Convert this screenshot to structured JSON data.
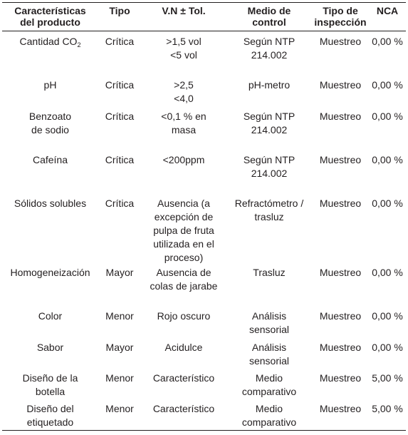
{
  "table": {
    "headers": [
      "Características\ndel producto",
      "Tipo",
      "V.N ± Tol.",
      "Medio de\ncontrol",
      "Tipo de\ninspección",
      "NCA"
    ],
    "rows": [
      {
        "caracteristica_pre": "Cantidad CO",
        "caracteristica_sub": "2",
        "tipo": "Crítica",
        "vn_tol": ">1,5 vol\n<5 vol",
        "medio": "Según NTP\n214.002",
        "inspeccion": "Muestreo",
        "nca": "0,00 %"
      },
      {
        "caracteristica": "pH",
        "tipo": "Crítica",
        "vn_tol": ">2,5\n<4,0",
        "medio": "pH-metro",
        "inspeccion": "Muestreo",
        "nca": "0,00 %"
      },
      {
        "caracteristica": "Benzoato\nde sodio",
        "tipo": "Crítica",
        "vn_tol": "<0,1 % en\nmasa",
        "medio": "Según NTP\n214.002",
        "inspeccion": "Muestreo",
        "nca": "0,00 %"
      },
      {
        "caracteristica": "Cafeína",
        "tipo": "Crítica",
        "vn_tol": "<200ppm",
        "medio": "Según NTP\n214.002",
        "inspeccion": "Muestreo",
        "nca": "0,00 %"
      },
      {
        "caracteristica": "Sólidos solubles",
        "tipo": "Crítica",
        "vn_tol": "Ausencia (a\nexcepción de\npulpa de fruta\nutilizada en el\nproceso)",
        "medio": "Refractómetro /\ntrasluz",
        "inspeccion": "Muestreo",
        "nca": "0,00 %"
      },
      {
        "caracteristica": "Homogeneización",
        "tipo": "Mayor",
        "vn_tol": "Ausencia de\ncolas de jarabe",
        "medio": "Trasluz",
        "inspeccion": "Muestreo",
        "nca": "0,00 %"
      },
      {
        "caracteristica": "Color",
        "tipo": "Menor",
        "vn_tol": "Rojo oscuro",
        "medio": "Análisis\nsensorial",
        "inspeccion": "Muestreo",
        "nca": "0,00 %"
      },
      {
        "caracteristica": "Sabor",
        "tipo": "Mayor",
        "vn_tol": "Acidulce",
        "medio": "Análisis\nsensorial",
        "inspeccion": "Muestreo",
        "nca": "0,00 %"
      },
      {
        "caracteristica": "Diseño de la\nbotella",
        "tipo": "Menor",
        "vn_tol": "Característico",
        "medio": "Medio\ncomparativo",
        "inspeccion": "Muestreo",
        "nca": "5,00 %"
      },
      {
        "caracteristica": "Diseño del\netiquetado",
        "tipo": "Menor",
        "vn_tol": "Característico",
        "medio": "Medio\ncomparativo",
        "inspeccion": "Muestreo",
        "nca": "5,00 %"
      }
    ]
  }
}
